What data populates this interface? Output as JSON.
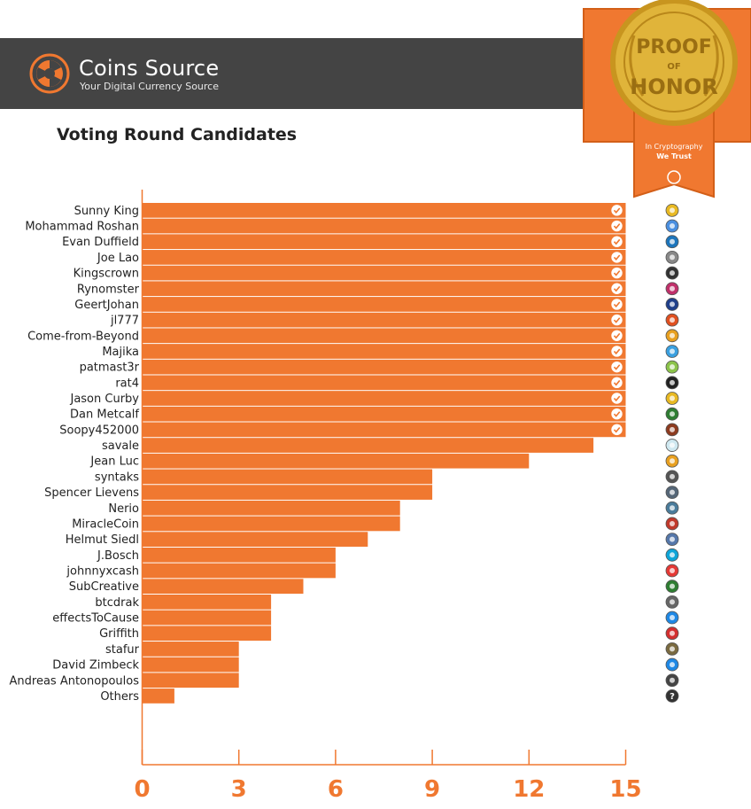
{
  "brand": {
    "name": "Coins Source",
    "tagline": "Your Digital Currency Source"
  },
  "badge": {
    "line1": "PROOF",
    "line2": "OF",
    "line3": "HONOR",
    "line4": "In Cryptography",
    "line5": "We Trust"
  },
  "colors": {
    "accent": "#f07830",
    "header": "#444444",
    "gold": "#d4a62a"
  },
  "chart_data": {
    "type": "bar",
    "orientation": "horizontal",
    "title": "Voting Round Candidates",
    "xlim": [
      0,
      15
    ],
    "xticks": [
      0,
      3,
      6,
      9,
      12,
      15
    ],
    "categories": [
      "Sunny King",
      "Mohammad Roshan",
      "Evan Duffield",
      "Joe Lao",
      "Kingscrown",
      "Rynomster",
      "GeertJohan",
      "jl777",
      "Come-from-Beyond",
      "Majika",
      "patmast3r",
      "rat4",
      "Jason Curby",
      "Dan Metcalf",
      "Soopy452000",
      "savale",
      "Jean Luc",
      "syntaks",
      "Spencer Lievens",
      "Nerio",
      "MiracleCoin",
      "Helmut Siedl",
      "J.Bosch",
      "johnnyxcash",
      "SubCreative",
      "btcdrak",
      "effectsToCause",
      "Griffith",
      "stafur",
      "David Zimbeck",
      "Andreas Antonopoulos",
      "Others"
    ],
    "values": [
      15,
      15,
      15,
      15,
      15,
      15,
      15,
      15,
      15,
      15,
      15,
      15,
      15,
      15,
      15,
      14,
      12,
      9,
      9,
      8,
      8,
      7,
      6,
      6,
      5,
      4,
      4,
      4,
      3,
      3,
      3,
      1
    ],
    "checked": [
      true,
      true,
      true,
      true,
      true,
      true,
      true,
      true,
      true,
      true,
      true,
      true,
      true,
      true,
      true,
      false,
      false,
      false,
      false,
      false,
      false,
      false,
      false,
      false,
      false,
      false,
      false,
      false,
      false,
      false,
      false,
      false
    ],
    "coin_icon_colors": [
      "#e8b923",
      "#4a8fe0",
      "#1c75bc",
      "#888888",
      "#333333",
      "#c0306a",
      "#1f3f8a",
      "#e05020",
      "#e8a020",
      "#3aa0e0",
      "#8bc34a",
      "#222222",
      "#e8b923",
      "#2e7d32",
      "#8d3b1f",
      "#cfe8f0",
      "#e8a020",
      "#555555",
      "#556677",
      "#4a7c9b",
      "#c0392b",
      "#5577aa",
      "#0ea5d8",
      "#e53935",
      "#2e7d32",
      "#666666",
      "#1e88e5",
      "#d32f2f",
      "#7a6a40",
      "#1e88e5",
      "#444444",
      "#333333"
    ],
    "coin_icon_names": [
      "coin-icon",
      "coin-icon",
      "coin-icon",
      "coin-icon",
      "coin-icon",
      "coin-icon",
      "coin-icon",
      "coin-icon",
      "coin-icon",
      "coin-icon",
      "coin-icon",
      "coin-icon",
      "coin-icon",
      "coin-icon",
      "coin-icon",
      "coin-icon",
      "coin-icon",
      "coin-icon",
      "coin-icon",
      "coin-icon",
      "coin-icon",
      "coin-icon",
      "coin-icon",
      "coin-icon",
      "coin-icon",
      "coin-icon",
      "coin-icon",
      "coin-icon",
      "coin-icon",
      "coin-icon",
      "avatar-icon",
      "question-icon"
    ]
  }
}
